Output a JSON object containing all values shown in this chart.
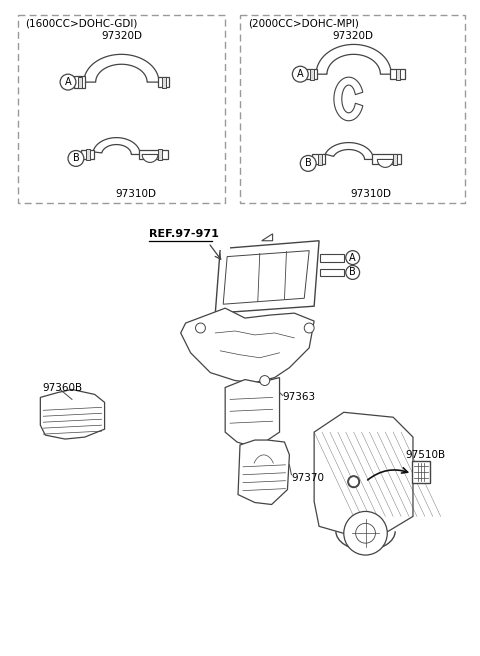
{
  "bg_color": "#ffffff",
  "line_color": "#444444",
  "text_color": "#000000",
  "dashed_box_color": "#999999",
  "box1_label": "(1600CC>DOHC-GDI)",
  "box2_label": "(2000CC>DOHC-MPI)",
  "label_97320D_1": "97320D",
  "label_97310D_1": "97310D",
  "label_97320D_2": "97320D",
  "label_97310D_2": "97310D",
  "ref_label": "REF.97-971",
  "label97360B": "97360B",
  "label97363": "97363",
  "label97370": "97370",
  "label97510B": "97510B",
  "fig_width": 4.8,
  "fig_height": 6.56,
  "dpi": 100
}
